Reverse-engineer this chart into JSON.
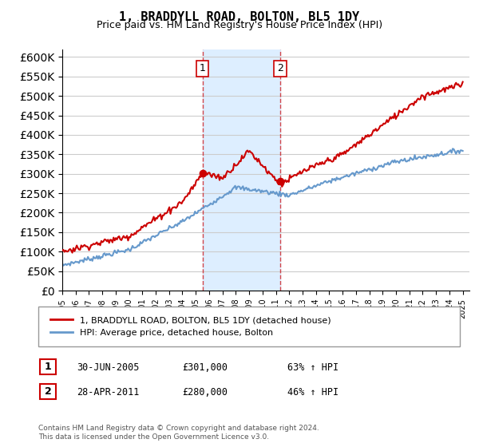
{
  "title": "1, BRADDYLL ROAD, BOLTON, BL5 1DY",
  "subtitle": "Price paid vs. HM Land Registry's House Price Index (HPI)",
  "ylim": [
    0,
    620000
  ],
  "yticks": [
    0,
    50000,
    100000,
    150000,
    200000,
    250000,
    300000,
    350000,
    400000,
    450000,
    500000,
    550000,
    600000
  ],
  "sale1": {
    "date_num": 2005.5,
    "price": 301000,
    "label": "1"
  },
  "sale2": {
    "date_num": 2011.33,
    "price": 280000,
    "label": "2"
  },
  "hpi_color": "#6699cc",
  "price_color": "#cc0000",
  "shade_color": "#ddeeff",
  "legend_label_price": "1, BRADDYLL ROAD, BOLTON, BL5 1DY (detached house)",
  "legend_label_hpi": "HPI: Average price, detached house, Bolton",
  "table_row1": [
    "1",
    "30-JUN-2005",
    "£301,000",
    "63% ↑ HPI"
  ],
  "table_row2": [
    "2",
    "28-APR-2011",
    "£280,000",
    "46% ↑ HPI"
  ],
  "footer": "Contains HM Land Registry data © Crown copyright and database right 2024.\nThis data is licensed under the Open Government Licence v3.0."
}
